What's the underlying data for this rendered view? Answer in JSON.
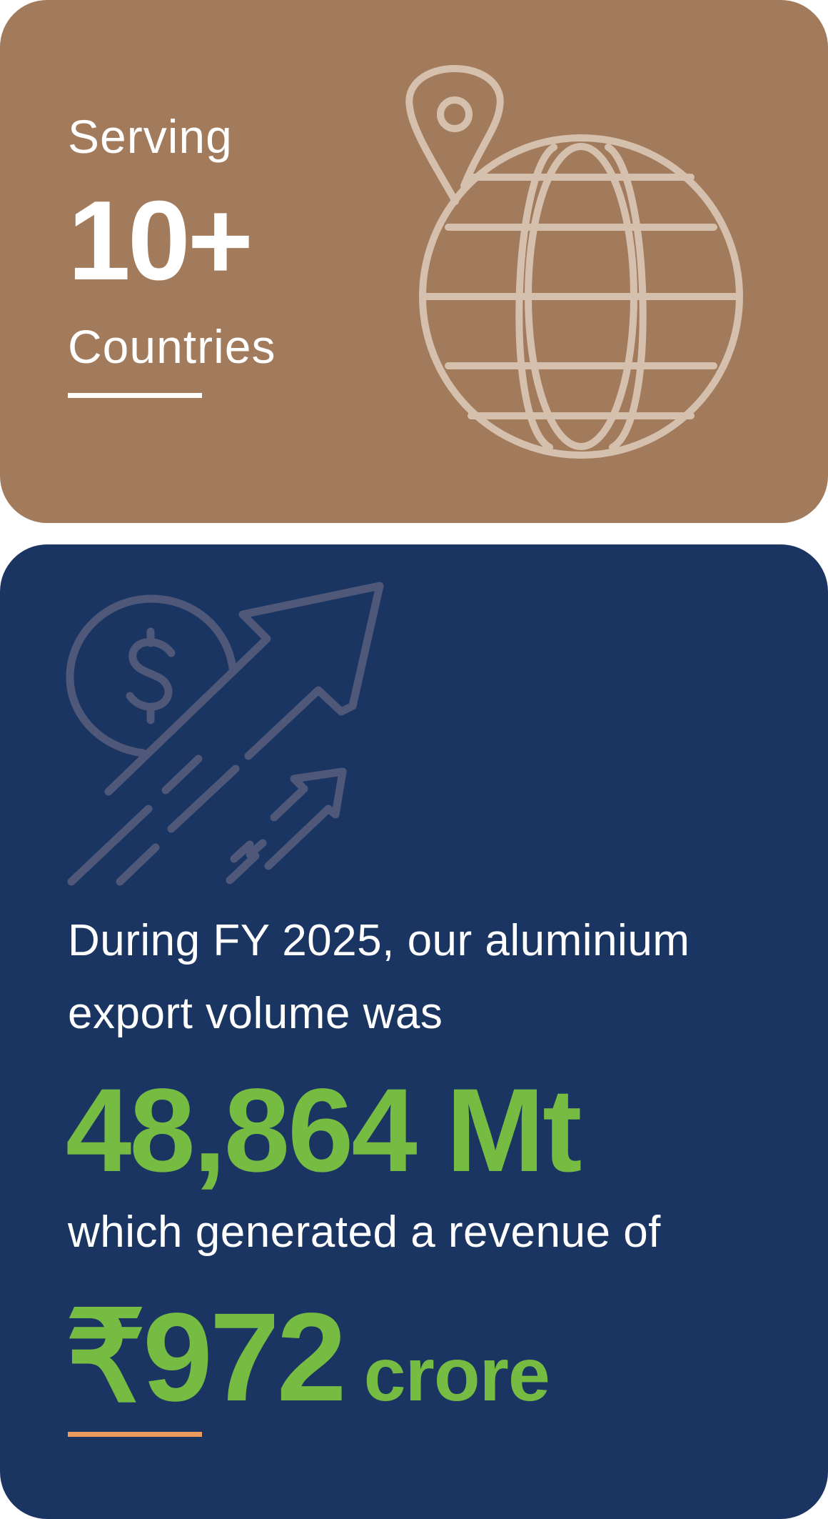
{
  "countries_card": {
    "prefix": "Serving",
    "count": "10+",
    "label": "Countries",
    "icon": "globe-with-location-pin-icon",
    "background_color": "#a27a5c",
    "icon_color": "#d5c0ad",
    "text_color": "#ffffff"
  },
  "exports_card": {
    "intro_line_1": "During FY 2025, our aluminium",
    "intro_line_2": "export volume was",
    "volume": "48,864 Mt",
    "revenue_intro": "which generated a revenue of",
    "revenue_value": "₹972",
    "revenue_unit": "crore",
    "icon": "dollar-coin-growth-arrow-icon",
    "background_color": "#1b3562",
    "icon_color": "#4f5878",
    "highlight_color": "#76bc43",
    "accent_line_color": "#ec9a5d"
  }
}
